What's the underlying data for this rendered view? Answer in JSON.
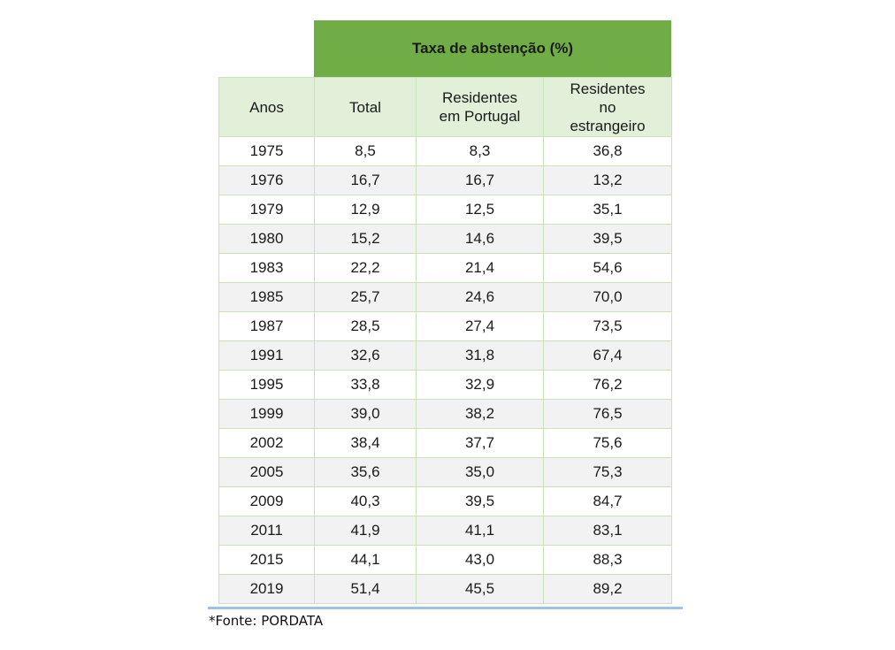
{
  "chart_data": {
    "type": "table",
    "title": "Taxa de abstenção (%)",
    "columns": [
      "Anos",
      "Total",
      "Residentes em Portugal",
      "Residentes no estrangeiro"
    ],
    "rows": [
      [
        "1975",
        "8,5",
        "8,3",
        "36,8"
      ],
      [
        "1976",
        "16,7",
        "16,7",
        "13,2"
      ],
      [
        "1979",
        "12,9",
        "12,5",
        "35,1"
      ],
      [
        "1980",
        "15,2",
        "14,6",
        "39,5"
      ],
      [
        "1983",
        "22,2",
        "21,4",
        "54,6"
      ],
      [
        "1985",
        "25,7",
        "24,6",
        "70,0"
      ],
      [
        "1987",
        "28,5",
        "27,4",
        "73,5"
      ],
      [
        "1991",
        "32,6",
        "31,8",
        "67,4"
      ],
      [
        "1995",
        "33,8",
        "32,9",
        "76,2"
      ],
      [
        "1999",
        "39,0",
        "38,2",
        "76,5"
      ],
      [
        "2002",
        "38,4",
        "37,7",
        "75,6"
      ],
      [
        "2005",
        "35,6",
        "35,0",
        "75,3"
      ],
      [
        "2009",
        "40,3",
        "39,5",
        "84,7"
      ],
      [
        "2011",
        "41,9",
        "41,1",
        "83,1"
      ],
      [
        "2015",
        "44,1",
        "43,0",
        "88,3"
      ],
      [
        "2019",
        "51,4",
        "45,5",
        "89,2"
      ]
    ]
  },
  "source": "*Fonte: PORDATA",
  "colors": {
    "title_band": "#70ad47",
    "header_band": "#e2efd9",
    "row_alt": "#f2f2f2",
    "cell_border": "#c9e2b8",
    "bottom_rule": "#9dc3e6"
  }
}
